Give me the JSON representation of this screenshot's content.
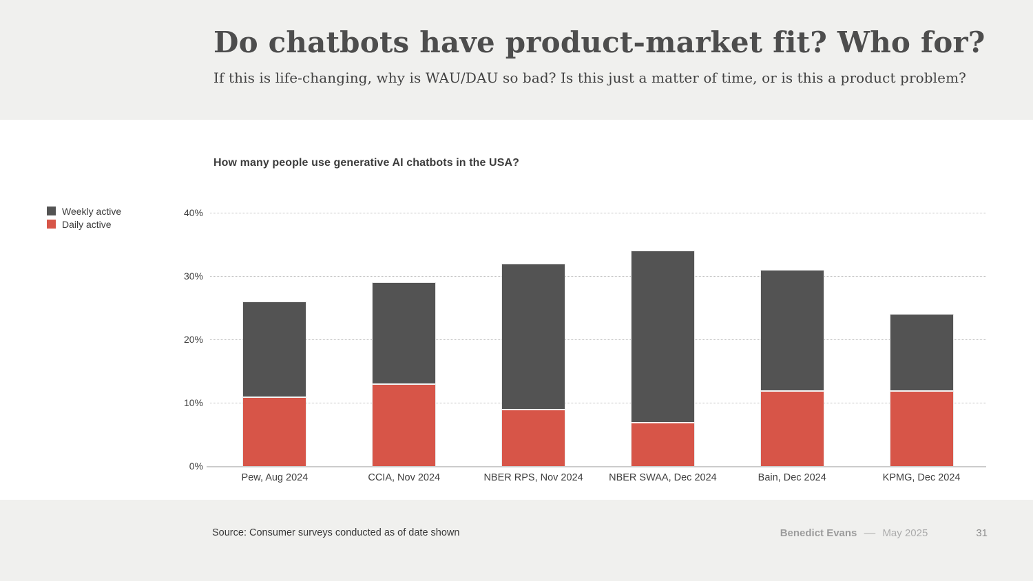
{
  "header": {
    "title": "Do chatbots have product-market fit? Who for?",
    "subtitle": "If this is life-changing, why is WAU/DAU so bad? Is this just a matter of time, or is this a product problem?"
  },
  "chart_data": {
    "type": "bar",
    "stacked": true,
    "title": "How many people use generative AI chatbots in the USA?",
    "categories": [
      "Pew, Aug 2024",
      "CCIA, Nov 2024",
      "NBER RPS, Nov 2024",
      "NBER SWAA, Dec 2024",
      "Bain, Dec 2024",
      "KPMG, Dec 2024"
    ],
    "series": [
      {
        "name": "Weekly active",
        "color": "#535353",
        "values": [
          26,
          29,
          32,
          34,
          31,
          24
        ],
        "note": "total bar height (weekly active %)"
      },
      {
        "name": "Daily active",
        "color": "#d75548",
        "values": [
          11,
          13,
          9,
          7,
          12,
          12
        ],
        "note": "bottom segment (daily active %)"
      }
    ],
    "value_unit": "%",
    "ylim": [
      0,
      40
    ],
    "yticks": [
      0,
      10,
      20,
      30,
      40
    ],
    "ytick_suffix": "%",
    "grid": "dotted-horizontal",
    "legend_position": "upper-left-outside"
  },
  "footer": {
    "source": "Source: Consumer surveys conducted as of date shown",
    "author": "Benedict Evans",
    "dash": "––",
    "date": "May 2025",
    "page": "31"
  }
}
